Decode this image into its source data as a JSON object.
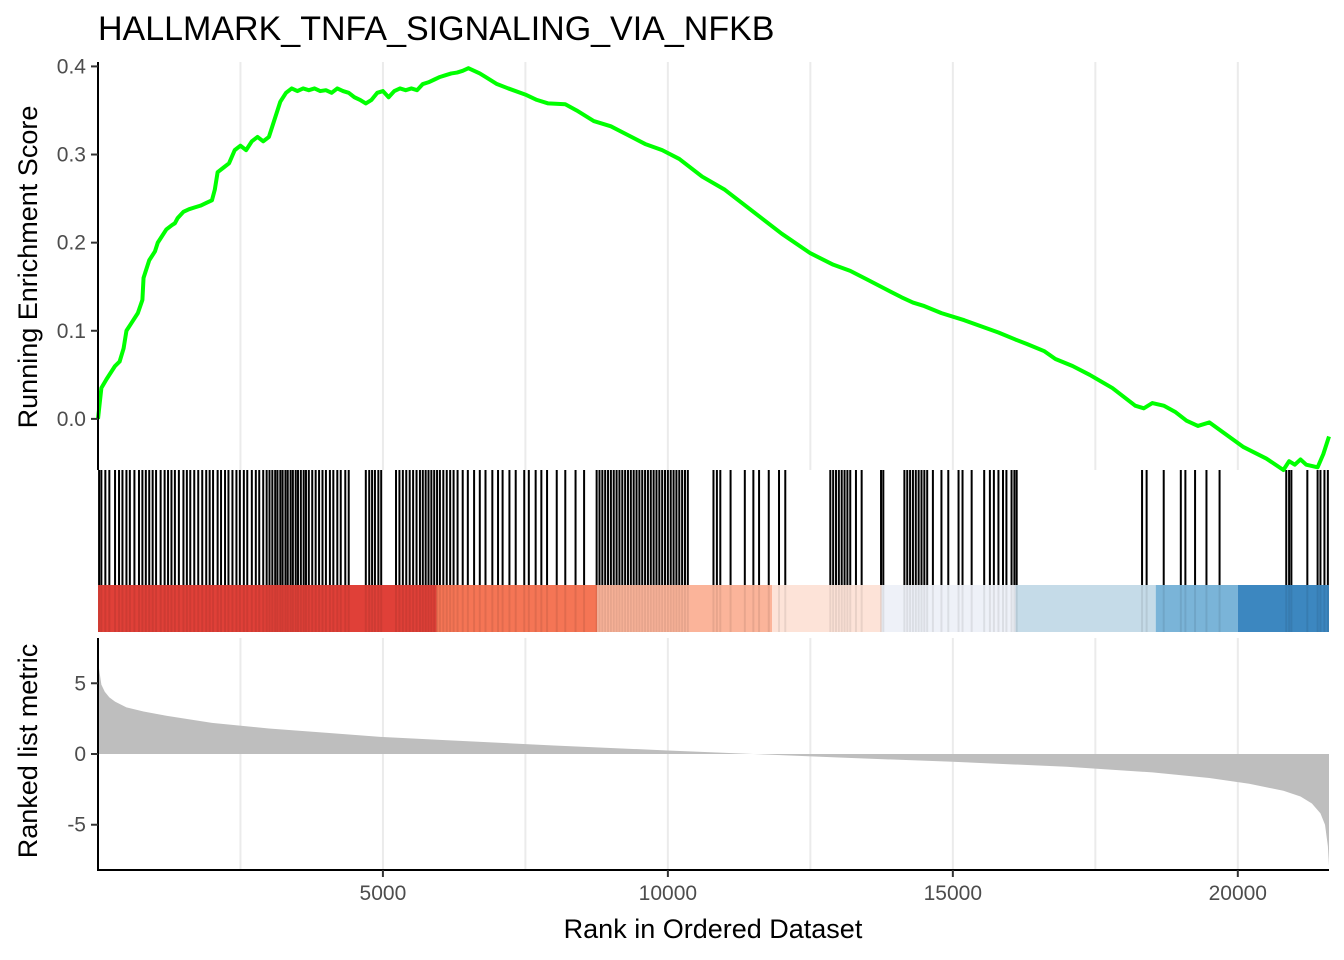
{
  "chart_data": {
    "type": "line",
    "title": "HALLMARK_TNFA_SIGNALING_VIA_NFKB",
    "xlabel": "Rank in Ordered Dataset",
    "xlim": [
      1,
      21600
    ],
    "x_ticks": [
      5000,
      10000,
      15000,
      20000
    ],
    "x_tick_labels": [
      "5000",
      "10000",
      "15000",
      "20000"
    ],
    "grid": "vertical major and minor",
    "panels": {
      "running_score": {
        "ylabel": "Running Enrichment Score",
        "ylim": [
          -0.058,
          0.405
        ],
        "y_ticks": [
          0.0,
          0.1,
          0.2,
          0.3,
          0.4
        ],
        "y_tick_labels": [
          "0.0",
          "0.1",
          "0.2",
          "0.3",
          "0.4"
        ],
        "color": "#00ff00",
        "series": [
          {
            "x": [
              1,
              60,
              150,
              300,
              380,
              450,
              500,
              600,
              700,
              780,
              800,
              900,
              1000,
              1050,
              1100,
              1200,
              1300,
              1350,
              1400,
              1500,
              1600,
              1700,
              1800,
              1900,
              2000,
              2050,
              2100,
              2200,
              2300,
              2400,
              2500,
              2600,
              2700,
              2800,
              2900,
              3000,
              3100,
              3200,
              3300,
              3400,
              3500,
              3600,
              3700,
              3800,
              3900,
              4000,
              4100,
              4200,
              4300,
              4400,
              4500,
              4600,
              4700,
              4800,
              4900,
              5000,
              5100,
              5200,
              5300,
              5400,
              5500,
              5600,
              5700,
              5800,
              5900,
              6000,
              6100,
              6200,
              6300,
              6400,
              6500,
              6600,
              6700,
              6800,
              7000,
              7200,
              7500,
              7700,
              7900,
              8200,
              8400,
              8700,
              9000,
              9300,
              9600,
              9900,
              10200,
              10600,
              11000,
              11500,
              12000,
              12500,
              12900,
              13200,
              13500,
              13800,
              14100,
              14300,
              14500,
              14800,
              15200,
              15500,
              15800,
              16100,
              16300,
              16600,
              16800,
              17100,
              17400,
              17800,
              18200,
              18350,
              18500,
              18700,
              18900,
              19100,
              19300,
              19500,
              19800,
              20100,
              20500,
              20800,
              20900,
              21000,
              21100,
              21200,
              21400,
              21500,
              21600
            ],
            "y": [
              0.0,
              0.035,
              0.045,
              0.06,
              0.065,
              0.08,
              0.1,
              0.11,
              0.12,
              0.135,
              0.16,
              0.18,
              0.19,
              0.2,
              0.205,
              0.215,
              0.22,
              0.222,
              0.228,
              0.235,
              0.238,
              0.24,
              0.242,
              0.245,
              0.248,
              0.26,
              0.28,
              0.285,
              0.29,
              0.305,
              0.31,
              0.305,
              0.315,
              0.32,
              0.315,
              0.32,
              0.34,
              0.36,
              0.37,
              0.375,
              0.372,
              0.375,
              0.373,
              0.375,
              0.372,
              0.373,
              0.37,
              0.375,
              0.372,
              0.37,
              0.365,
              0.362,
              0.358,
              0.362,
              0.37,
              0.372,
              0.365,
              0.372,
              0.375,
              0.373,
              0.375,
              0.373,
              0.38,
              0.382,
              0.385,
              0.388,
              0.39,
              0.392,
              0.393,
              0.395,
              0.398,
              0.395,
              0.392,
              0.388,
              0.38,
              0.375,
              0.368,
              0.362,
              0.358,
              0.357,
              0.35,
              0.338,
              0.332,
              0.322,
              0.312,
              0.305,
              0.295,
              0.275,
              0.26,
              0.235,
              0.21,
              0.188,
              0.175,
              0.168,
              0.158,
              0.148,
              0.138,
              0.132,
              0.128,
              0.12,
              0.112,
              0.105,
              0.098,
              0.09,
              0.085,
              0.077,
              0.068,
              0.06,
              0.05,
              0.035,
              0.015,
              0.012,
              0.018,
              0.015,
              0.008,
              -0.002,
              -0.008,
              -0.004,
              -0.018,
              -0.032,
              -0.045,
              -0.058,
              -0.048,
              -0.052,
              -0.046,
              -0.052,
              -0.055,
              -0.04,
              -0.02
            ]
          }
        ]
      },
      "hits": {
        "color": "#000000",
        "positions": [
          20,
          60,
          130,
          200,
          300,
          370,
          430,
          500,
          560,
          640,
          720,
          780,
          840,
          900,
          960,
          1020,
          1100,
          1170,
          1230,
          1290,
          1350,
          1420,
          1500,
          1560,
          1620,
          1690,
          1760,
          1830,
          1900,
          1960,
          2020,
          2100,
          2160,
          2230,
          2290,
          2360,
          2430,
          2490,
          2560,
          2620,
          2700,
          2770,
          2830,
          2900,
          2960,
          3010,
          3060,
          3110,
          3150,
          3200,
          3240,
          3290,
          3330,
          3380,
          3420,
          3470,
          3510,
          3560,
          3610,
          3650,
          3700,
          3760,
          3820,
          3880,
          3940,
          4000,
          4070,
          4130,
          4200,
          4260,
          4340,
          4400,
          4700,
          4760,
          4810,
          4860,
          4920,
          4970,
          5230,
          5290,
          5350,
          5410,
          5470,
          5530,
          5590,
          5650,
          5700,
          5750,
          5800,
          5850,
          5900,
          5950,
          6000,
          6060,
          6120,
          6180,
          6240,
          6310,
          6400,
          6490,
          6600,
          6700,
          6800,
          6920,
          7020,
          7100,
          7220,
          7330,
          7480,
          7560,
          7680,
          7780,
          7880,
          8050,
          8200,
          8380,
          8530,
          8750,
          8800,
          8850,
          8900,
          8950,
          9000,
          9050,
          9100,
          9150,
          9200,
          9250,
          9300,
          9350,
          9400,
          9450,
          9500,
          9550,
          9600,
          9650,
          9700,
          9750,
          9800,
          9850,
          9900,
          9950,
          10000,
          10050,
          10100,
          10150,
          10200,
          10250,
          10300,
          10350,
          10800,
          10860,
          10920,
          11100,
          11350,
          11500,
          11600,
          11770,
          11950,
          12060,
          12850,
          12900,
          12950,
          13000,
          13050,
          13100,
          13150,
          13200,
          13300,
          13400,
          13740,
          13780,
          14150,
          14200,
          14250,
          14300,
          14350,
          14400,
          14450,
          14500,
          14550,
          14650,
          14800,
          14920,
          15100,
          15170,
          15330,
          15550,
          15650,
          15720,
          15800,
          15880,
          15940,
          16030,
          16080,
          16120,
          18320,
          18400,
          18700,
          19000,
          19080,
          19250,
          19450,
          19680,
          20850,
          20900,
          20940,
          21220,
          21400,
          21450,
          21520,
          21580
        ]
      },
      "rank_bands": [
        {
          "from": 1,
          "to": 5940,
          "color": "#e04038"
        },
        {
          "from": 5940,
          "to": 8760,
          "color": "#f57555"
        },
        {
          "from": 8760,
          "to": 11830,
          "color": "#fbb49a"
        },
        {
          "from": 11830,
          "to": 13750,
          "color": "#fde3d8"
        },
        {
          "from": 13750,
          "to": 16100,
          "color": "#eef1f8"
        },
        {
          "from": 16100,
          "to": 18560,
          "color": "#c5dbe8"
        },
        {
          "from": 18560,
          "to": 20000,
          "color": "#7ab4d8"
        },
        {
          "from": 20000,
          "to": 21600,
          "color": "#3c87c0"
        }
      ],
      "ranked_metric": {
        "ylabel": "Ranked list metric",
        "ylim": [
          -8.2,
          8.2
        ],
        "y_ticks": [
          -5,
          0,
          5
        ],
        "y_tick_labels": [
          "-5",
          "0",
          "5"
        ],
        "color": "#bebebe",
        "x": [
          1,
          20,
          60,
          120,
          200,
          300,
          500,
          800,
          1200,
          2000,
          3000,
          4000,
          5000,
          6000,
          8000,
          10000,
          11500,
          13000,
          15000,
          17000,
          18500,
          19500,
          20200,
          20800,
          21100,
          21300,
          21450,
          21530,
          21580,
          21600
        ],
        "y": [
          7.0,
          6.0,
          4.9,
          4.4,
          4.0,
          3.7,
          3.3,
          3.0,
          2.7,
          2.2,
          1.8,
          1.5,
          1.2,
          1.0,
          0.6,
          0.25,
          0.0,
          -0.25,
          -0.55,
          -0.9,
          -1.3,
          -1.7,
          -2.1,
          -2.6,
          -3.0,
          -3.5,
          -4.2,
          -5.0,
          -6.5,
          -7.9
        ]
      }
    }
  }
}
